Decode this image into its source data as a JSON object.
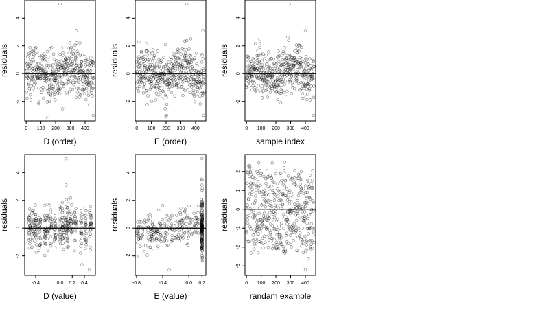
{
  "chart_data": [
    {
      "type": "scatter",
      "title": "",
      "xlabel": "D (order)",
      "ylabel": "residuals",
      "xlim": [
        -10,
        470
      ],
      "ylim": [
        -3.4,
        5.3
      ],
      "xticks": [
        0,
        100,
        200,
        300,
        400
      ],
      "xtick_labels": [
        "0",
        "100",
        "200",
        "300",
        "400"
      ],
      "yticks": [
        -2,
        0,
        2,
        4
      ],
      "ytick_labels": [
        "-2",
        "0",
        "2",
        "4"
      ],
      "hline": 0,
      "grid": false,
      "gen": "order-D",
      "n": 460
    },
    {
      "type": "scatter",
      "title": "",
      "xlabel": "E (order)",
      "ylabel": "residuals",
      "xlim": [
        -10,
        470
      ],
      "ylim": [
        -3.4,
        5.3
      ],
      "xticks": [
        0,
        100,
        200,
        300,
        400
      ],
      "xtick_labels": [
        "0",
        "100",
        "200",
        "300",
        "400"
      ],
      "yticks": [
        -2,
        0,
        2,
        4
      ],
      "ytick_labels": [
        "-2",
        "0",
        "2",
        "4"
      ],
      "hline": 0,
      "grid": false,
      "gen": "order-E",
      "n": 460
    },
    {
      "type": "scatter",
      "title": "",
      "xlabel": "sample index",
      "ylabel": "residuals",
      "xlim": [
        -10,
        470
      ],
      "ylim": [
        -3.4,
        5.3
      ],
      "xticks": [
        0,
        100,
        200,
        300,
        400
      ],
      "xtick_labels": [
        "0",
        "100",
        "200",
        "300",
        "400"
      ],
      "yticks": [
        -2,
        0,
        2,
        4
      ],
      "ytick_labels": [
        "-2",
        "0",
        "2",
        "4"
      ],
      "hline": 0,
      "grid": false,
      "gen": "index",
      "n": 460
    },
    {
      "type": "scatter",
      "title": "",
      "xlabel": "D (value)",
      "ylabel": "residuals",
      "xlim": [
        -0.58,
        0.58
      ],
      "ylim": [
        -3.4,
        5.3
      ],
      "xticks": [
        -0.4,
        0.0,
        0.2,
        0.4
      ],
      "xtick_labels": [
        "-0.4",
        "0.0",
        "0.2",
        "0.4"
      ],
      "yticks": [
        -2,
        0,
        2,
        4
      ],
      "ytick_labels": [
        "-2",
        "0",
        "2",
        "4"
      ],
      "hline": 0,
      "grid": false,
      "gen": "value-D",
      "n": 400
    },
    {
      "type": "scatter",
      "title": "",
      "xlabel": "E (value)",
      "ylabel": "residuals",
      "xlim": [
        -0.82,
        0.26
      ],
      "ylim": [
        -3.4,
        5.3
      ],
      "xticks": [
        -0.8,
        -0.4,
        0.0,
        0.2
      ],
      "xtick_labels": [
        "-0.8",
        "-0.4",
        "0.0",
        "0.2"
      ],
      "yticks": [
        -2,
        0,
        2,
        4
      ],
      "ytick_labels": [
        "-2",
        "0",
        "2",
        "4"
      ],
      "hline": 0,
      "grid": false,
      "gen": "value-E",
      "n": 400
    },
    {
      "type": "scatter",
      "title": "",
      "xlabel": "randam example",
      "ylabel": "residuals",
      "xlim": [
        -10,
        470
      ],
      "ylim": [
        -3.5,
        2.9
      ],
      "xticks": [
        0,
        100,
        200,
        300,
        400
      ],
      "xtick_labels": [
        "0",
        "100",
        "200",
        "300",
        "400"
      ],
      "yticks": [
        -3,
        -2,
        -1,
        0,
        1,
        2
      ],
      "ytick_labels": [
        "-3",
        "-2",
        "-1",
        "0",
        "1",
        "2"
      ],
      "hline": 0,
      "grid": false,
      "gen": "random",
      "n": 460
    }
  ]
}
